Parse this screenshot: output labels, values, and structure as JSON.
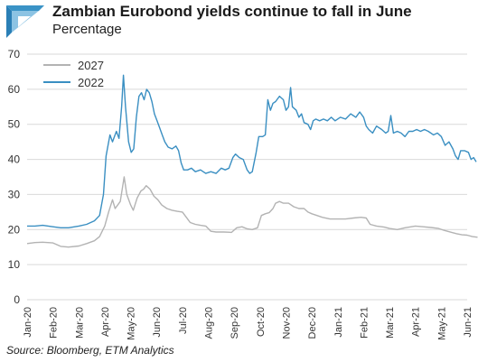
{
  "header": {
    "title": "Zambian Eurobond yields continue to fall in June",
    "subtitle": "Percentage"
  },
  "footer": {
    "source": "Source: Bloomberg, ETM Analytics"
  },
  "colors": {
    "logo": "#3a93c6",
    "series_2027": "#b3b3b3",
    "series_2022": "#3a8fc2",
    "grid": "#d9d9d9",
    "axis_text": "#333333"
  },
  "chart_data": {
    "type": "line",
    "title": "Zambian Eurobond yields continue to fall in June",
    "subtitle": "Percentage",
    "xlabel": "",
    "ylabel": "",
    "ylim": [
      0,
      70
    ],
    "y_ticks": [
      0,
      10,
      20,
      30,
      40,
      50,
      60,
      70
    ],
    "x_ticks": [
      "Jan-20",
      "Feb-20",
      "Mar-20",
      "Apr-20",
      "May-20",
      "Jun-20",
      "Jul-20",
      "Aug-20",
      "Sep-20",
      "Oct-20",
      "Nov-20",
      "Dec-20",
      "Jan-21",
      "Feb-21",
      "Mar-21",
      "Apr-21",
      "May-21",
      "Jun-21"
    ],
    "grid": "horizontal",
    "legend_position": "top-left",
    "series": [
      {
        "name": "2027",
        "color": "#b3b3b3",
        "points": [
          [
            0,
            16
          ],
          [
            0.3,
            16.3
          ],
          [
            0.6,
            16.4
          ],
          [
            1,
            16.2
          ],
          [
            1.3,
            15.2
          ],
          [
            1.6,
            15
          ],
          [
            2,
            15.3
          ],
          [
            2.3,
            16
          ],
          [
            2.6,
            16.8
          ],
          [
            2.8,
            18
          ],
          [
            3,
            21
          ],
          [
            3.15,
            25
          ],
          [
            3.3,
            28.5
          ],
          [
            3.4,
            26
          ],
          [
            3.5,
            27
          ],
          [
            3.6,
            28
          ],
          [
            3.75,
            35
          ],
          [
            3.85,
            30
          ],
          [
            4,
            27
          ],
          [
            4.1,
            25.5
          ],
          [
            4.25,
            29
          ],
          [
            4.4,
            31
          ],
          [
            4.5,
            31.5
          ],
          [
            4.6,
            32.5
          ],
          [
            4.75,
            31.5
          ],
          [
            4.9,
            29.5
          ],
          [
            5.05,
            28.5
          ],
          [
            5.2,
            27
          ],
          [
            5.4,
            26
          ],
          [
            5.6,
            25.5
          ],
          [
            5.8,
            25.2
          ],
          [
            6,
            25
          ],
          [
            6.15,
            23.5
          ],
          [
            6.3,
            22
          ],
          [
            6.5,
            21.5
          ],
          [
            6.7,
            21.2
          ],
          [
            6.9,
            21
          ],
          [
            7.1,
            19.5
          ],
          [
            7.3,
            19.3
          ],
          [
            7.6,
            19.3
          ],
          [
            7.9,
            19.2
          ],
          [
            8.1,
            20.5
          ],
          [
            8.3,
            20.8
          ],
          [
            8.5,
            20.2
          ],
          [
            8.7,
            20
          ],
          [
            8.9,
            20.5
          ],
          [
            9.05,
            24
          ],
          [
            9.2,
            24.5
          ],
          [
            9.35,
            24.8
          ],
          [
            9.5,
            26
          ],
          [
            9.6,
            27.5
          ],
          [
            9.75,
            28
          ],
          [
            9.9,
            27.5
          ],
          [
            10.1,
            27.5
          ],
          [
            10.3,
            26.5
          ],
          [
            10.5,
            26
          ],
          [
            10.7,
            26
          ],
          [
            10.85,
            25
          ],
          [
            11,
            24.5
          ],
          [
            11.2,
            24
          ],
          [
            11.4,
            23.5
          ],
          [
            11.7,
            23
          ],
          [
            12,
            23
          ],
          [
            12.3,
            23
          ],
          [
            12.6,
            23.3
          ],
          [
            12.9,
            23.5
          ],
          [
            13.1,
            23.3
          ],
          [
            13.25,
            21.5
          ],
          [
            13.5,
            21
          ],
          [
            13.8,
            20.7
          ],
          [
            14,
            20.3
          ],
          [
            14.3,
            20
          ],
          [
            14.6,
            20.5
          ],
          [
            15,
            21
          ],
          [
            15.3,
            20.8
          ],
          [
            15.6,
            20.6
          ],
          [
            15.9,
            20.3
          ],
          [
            16.1,
            19.8
          ],
          [
            16.4,
            19.2
          ],
          [
            16.6,
            18.8
          ],
          [
            16.8,
            18.5
          ],
          [
            17,
            18.4
          ],
          [
            17.2,
            18
          ],
          [
            17.4,
            17.8
          ]
        ]
      },
      {
        "name": "2022",
        "color": "#3a8fc2",
        "points": [
          [
            0,
            21
          ],
          [
            0.3,
            21
          ],
          [
            0.6,
            21.2
          ],
          [
            1,
            20.8
          ],
          [
            1.3,
            20.5
          ],
          [
            1.6,
            20.5
          ],
          [
            2,
            21
          ],
          [
            2.3,
            21.5
          ],
          [
            2.6,
            22.5
          ],
          [
            2.8,
            24
          ],
          [
            2.95,
            30
          ],
          [
            3.05,
            41
          ],
          [
            3.2,
            47
          ],
          [
            3.3,
            45
          ],
          [
            3.45,
            48
          ],
          [
            3.55,
            46
          ],
          [
            3.65,
            55
          ],
          [
            3.72,
            64
          ],
          [
            3.8,
            55
          ],
          [
            3.92,
            45
          ],
          [
            4.02,
            42
          ],
          [
            4.12,
            43
          ],
          [
            4.22,
            52
          ],
          [
            4.32,
            58
          ],
          [
            4.42,
            59
          ],
          [
            4.52,
            57
          ],
          [
            4.62,
            60
          ],
          [
            4.72,
            59
          ],
          [
            4.82,
            56.5
          ],
          [
            4.92,
            53
          ],
          [
            5.02,
            51
          ],
          [
            5.12,
            49
          ],
          [
            5.22,
            47
          ],
          [
            5.32,
            45
          ],
          [
            5.45,
            43.5
          ],
          [
            5.6,
            43
          ],
          [
            5.75,
            43.8
          ],
          [
            5.85,
            42.5
          ],
          [
            5.95,
            39
          ],
          [
            6.05,
            37
          ],
          [
            6.2,
            37
          ],
          [
            6.35,
            37.5
          ],
          [
            6.5,
            36.5
          ],
          [
            6.7,
            37
          ],
          [
            6.9,
            36
          ],
          [
            7.1,
            36.5
          ],
          [
            7.3,
            36
          ],
          [
            7.5,
            37.5
          ],
          [
            7.65,
            37
          ],
          [
            7.8,
            37.5
          ],
          [
            7.95,
            40.5
          ],
          [
            8.05,
            41.5
          ],
          [
            8.2,
            40.5
          ],
          [
            8.35,
            40
          ],
          [
            8.5,
            37
          ],
          [
            8.6,
            36
          ],
          [
            8.7,
            36.5
          ],
          [
            8.85,
            42
          ],
          [
            8.95,
            46.5
          ],
          [
            9.1,
            46.5
          ],
          [
            9.2,
            47
          ],
          [
            9.3,
            57
          ],
          [
            9.4,
            54
          ],
          [
            9.5,
            56
          ],
          [
            9.6,
            56.5
          ],
          [
            9.75,
            58
          ],
          [
            9.9,
            57
          ],
          [
            10,
            54
          ],
          [
            10.1,
            55
          ],
          [
            10.18,
            60.5
          ],
          [
            10.25,
            55
          ],
          [
            10.4,
            54
          ],
          [
            10.5,
            52
          ],
          [
            10.6,
            53
          ],
          [
            10.7,
            50.5
          ],
          [
            10.85,
            50
          ],
          [
            10.95,
            48.5
          ],
          [
            11.05,
            51
          ],
          [
            11.15,
            51.5
          ],
          [
            11.3,
            51
          ],
          [
            11.45,
            51.5
          ],
          [
            11.6,
            51
          ],
          [
            11.75,
            52
          ],
          [
            11.9,
            51
          ],
          [
            12.1,
            52
          ],
          [
            12.3,
            51.5
          ],
          [
            12.5,
            53
          ],
          [
            12.7,
            52
          ],
          [
            12.85,
            53.5
          ],
          [
            13,
            52
          ],
          [
            13.1,
            49.5
          ],
          [
            13.2,
            48.5
          ],
          [
            13.35,
            47.5
          ],
          [
            13.5,
            49.5
          ],
          [
            13.7,
            48.5
          ],
          [
            13.85,
            47.5
          ],
          [
            13.95,
            48
          ],
          [
            14.05,
            52.5
          ],
          [
            14.15,
            47.5
          ],
          [
            14.3,
            48
          ],
          [
            14.45,
            47.5
          ],
          [
            14.6,
            46.5
          ],
          [
            14.75,
            48
          ],
          [
            14.9,
            48
          ],
          [
            15.05,
            48.5
          ],
          [
            15.2,
            48
          ],
          [
            15.35,
            48.5
          ],
          [
            15.5,
            48
          ],
          [
            15.7,
            47
          ],
          [
            15.85,
            47.5
          ],
          [
            16,
            46.5
          ],
          [
            16.15,
            44
          ],
          [
            16.3,
            45
          ],
          [
            16.45,
            43
          ],
          [
            16.55,
            41
          ],
          [
            16.65,
            40
          ],
          [
            16.75,
            42.5
          ],
          [
            16.9,
            42.5
          ],
          [
            17.05,
            42
          ],
          [
            17.15,
            40
          ],
          [
            17.25,
            40.5
          ],
          [
            17.35,
            39.3
          ]
        ]
      }
    ]
  }
}
